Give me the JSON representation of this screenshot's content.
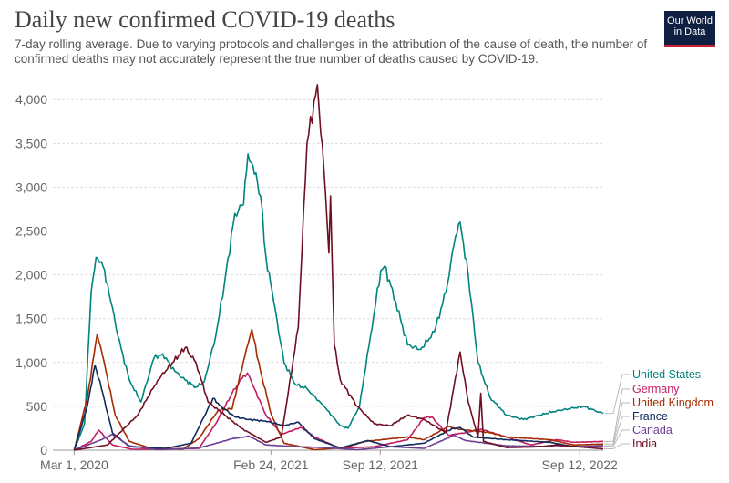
{
  "title": "Daily new confirmed COVID-19 deaths",
  "subtitle": "7-day rolling average. Due to varying protocols and challenges in the attribution of the cause of death, the number of confirmed deaths may not accurately represent the true number of deaths caused by COVID-19.",
  "logo": {
    "line1": "Our World",
    "line2": "in Data",
    "bg": "#0f1f41",
    "accent": "#c7202f"
  },
  "chart_data": {
    "type": "line",
    "title": "Daily new confirmed COVID-19 deaths",
    "ylim": [
      0,
      4200
    ],
    "yticks": [
      0,
      500,
      1000,
      1500,
      2000,
      2500,
      3000,
      3500,
      4000
    ],
    "ytick_labels": [
      "0",
      "500",
      "1,000",
      "1,500",
      "2,000",
      "2,500",
      "3,000",
      "3,500",
      "4,000"
    ],
    "xlim": [
      "2020-01-22",
      "2022-10-25"
    ],
    "xticks": [
      "2020-03-01",
      "2021-02-24",
      "2021-09-12",
      "2022-09-12"
    ],
    "xtick_labels": [
      "Mar 1, 2020",
      "Feb 24, 2021",
      "Sep 12, 2021",
      "Sep 12, 2022"
    ],
    "grid": true,
    "legend": "right",
    "series": [
      {
        "name": "United States",
        "color": "#00847e",
        "points": [
          [
            "2020-03-01",
            0
          ],
          [
            "2020-03-20",
            300
          ],
          [
            "2020-04-01",
            1800
          ],
          [
            "2020-04-10",
            2200
          ],
          [
            "2020-04-20",
            2150
          ],
          [
            "2020-05-01",
            1900
          ],
          [
            "2020-05-20",
            1300
          ],
          [
            "2020-06-10",
            800
          ],
          [
            "2020-07-01",
            550
          ],
          [
            "2020-07-25",
            1050
          ],
          [
            "2020-08-10",
            1100
          ],
          [
            "2020-09-01",
            900
          ],
          [
            "2020-09-20",
            800
          ],
          [
            "2020-10-10",
            720
          ],
          [
            "2020-10-25",
            780
          ],
          [
            "2020-11-15",
            1300
          ],
          [
            "2020-12-01",
            1900
          ],
          [
            "2020-12-20",
            2700
          ],
          [
            "2021-01-05",
            2800
          ],
          [
            "2021-01-13",
            3380
          ],
          [
            "2021-01-22",
            3250
          ],
          [
            "2021-02-05",
            2900
          ],
          [
            "2021-02-15",
            2200
          ],
          [
            "2021-03-01",
            1700
          ],
          [
            "2021-03-20",
            1000
          ],
          [
            "2021-04-10",
            750
          ],
          [
            "2021-05-01",
            700
          ],
          [
            "2021-06-01",
            500
          ],
          [
            "2021-07-01",
            280
          ],
          [
            "2021-07-15",
            250
          ],
          [
            "2021-08-05",
            500
          ],
          [
            "2021-08-25",
            1300
          ],
          [
            "2021-09-13",
            2050
          ],
          [
            "2021-09-20",
            2100
          ],
          [
            "2021-10-10",
            1700
          ],
          [
            "2021-11-01",
            1200
          ],
          [
            "2021-11-25",
            1150
          ],
          [
            "2021-12-20",
            1350
          ],
          [
            "2022-01-10",
            1800
          ],
          [
            "2022-01-25",
            2350
          ],
          [
            "2022-02-05",
            2600
          ],
          [
            "2022-02-20",
            2000
          ],
          [
            "2022-03-10",
            1000
          ],
          [
            "2022-04-01",
            600
          ],
          [
            "2022-05-01",
            400
          ],
          [
            "2022-06-01",
            350
          ],
          [
            "2022-07-01",
            400
          ],
          [
            "2022-08-01",
            450
          ],
          [
            "2022-09-01",
            480
          ],
          [
            "2022-09-20",
            500
          ],
          [
            "2022-10-10",
            450
          ],
          [
            "2022-10-25",
            420
          ]
        ]
      },
      {
        "name": "Germany",
        "color": "#c21c62",
        "points": [
          [
            "2020-03-01",
            0
          ],
          [
            "2020-04-01",
            100
          ],
          [
            "2020-04-15",
            230
          ],
          [
            "2020-05-10",
            60
          ],
          [
            "2020-06-15",
            10
          ],
          [
            "2020-10-15",
            20
          ],
          [
            "2020-11-15",
            300
          ],
          [
            "2020-12-15",
            650
          ],
          [
            "2021-01-05",
            850
          ],
          [
            "2021-01-12",
            880
          ],
          [
            "2021-01-25",
            700
          ],
          [
            "2021-02-15",
            400
          ],
          [
            "2021-03-15",
            180
          ],
          [
            "2021-04-20",
            260
          ],
          [
            "2021-05-15",
            150
          ],
          [
            "2021-07-01",
            20
          ],
          [
            "2021-09-01",
            40
          ],
          [
            "2021-11-01",
            120
          ],
          [
            "2021-12-01",
            370
          ],
          [
            "2021-12-15",
            380
          ],
          [
            "2022-01-15",
            170
          ],
          [
            "2022-02-15",
            200
          ],
          [
            "2022-03-15",
            240
          ],
          [
            "2022-05-01",
            150
          ],
          [
            "2022-06-15",
            60
          ],
          [
            "2022-08-01",
            120
          ],
          [
            "2022-09-01",
            90
          ],
          [
            "2022-10-25",
            100
          ]
        ]
      },
      {
        "name": "United Kingdom",
        "color": "#a52a00",
        "points": [
          [
            "2020-03-01",
            0
          ],
          [
            "2020-03-25",
            600
          ],
          [
            "2020-04-12",
            1320
          ],
          [
            "2020-04-25",
            1000
          ],
          [
            "2020-05-15",
            400
          ],
          [
            "2020-06-10",
            100
          ],
          [
            "2020-07-15",
            30
          ],
          [
            "2020-09-15",
            10
          ],
          [
            "2020-10-15",
            130
          ],
          [
            "2020-11-20",
            460
          ],
          [
            "2020-12-15",
            470
          ],
          [
            "2021-01-10",
            1150
          ],
          [
            "2021-01-20",
            1380
          ],
          [
            "2021-02-05",
            900
          ],
          [
            "2021-02-25",
            400
          ],
          [
            "2021-03-20",
            80
          ],
          [
            "2021-05-15",
            5
          ],
          [
            "2021-07-10",
            30
          ],
          [
            "2021-08-15",
            100
          ],
          [
            "2021-10-01",
            130
          ],
          [
            "2021-11-01",
            150
          ],
          [
            "2021-12-01",
            120
          ],
          [
            "2022-01-15",
            270
          ],
          [
            "2022-02-01",
            240
          ],
          [
            "2022-04-01",
            200
          ],
          [
            "2022-05-01",
            150
          ],
          [
            "2022-07-20",
            120
          ],
          [
            "2022-09-01",
            60
          ],
          [
            "2022-10-25",
            70
          ]
        ]
      },
      {
        "name": "France",
        "color": "#0f2c5c",
        "points": [
          [
            "2020-03-01",
            0
          ],
          [
            "2020-03-25",
            500
          ],
          [
            "2020-04-08",
            970
          ],
          [
            "2020-04-20",
            700
          ],
          [
            "2020-05-10",
            200
          ],
          [
            "2020-06-10",
            40
          ],
          [
            "2020-08-15",
            20
          ],
          [
            "2020-10-01",
            80
          ],
          [
            "2020-11-10",
            590
          ],
          [
            "2020-11-25",
            500
          ],
          [
            "2020-12-20",
            380
          ],
          [
            "2021-01-15",
            350
          ],
          [
            "2021-02-15",
            330
          ],
          [
            "2021-03-20",
            280
          ],
          [
            "2021-04-15",
            320
          ],
          [
            "2021-05-15",
            130
          ],
          [
            "2021-07-01",
            25
          ],
          [
            "2021-08-20",
            110
          ],
          [
            "2021-10-01",
            40
          ],
          [
            "2021-12-01",
            80
          ],
          [
            "2022-01-20",
            240
          ],
          [
            "2022-02-05",
            260
          ],
          [
            "2022-03-01",
            150
          ],
          [
            "2022-05-01",
            120
          ],
          [
            "2022-07-20",
            90
          ],
          [
            "2022-09-01",
            40
          ],
          [
            "2022-10-25",
            50
          ]
        ]
      },
      {
        "name": "Canada",
        "color": "#6d3e91",
        "points": [
          [
            "2020-03-01",
            0
          ],
          [
            "2020-04-20",
            120
          ],
          [
            "2020-05-10",
            180
          ],
          [
            "2020-06-10",
            50
          ],
          [
            "2020-08-01",
            5
          ],
          [
            "2020-10-15",
            25
          ],
          [
            "2020-12-15",
            130
          ],
          [
            "2021-01-15",
            160
          ],
          [
            "2021-02-15",
            60
          ],
          [
            "2021-04-15",
            40
          ],
          [
            "2021-06-01",
            30
          ],
          [
            "2021-08-01",
            5
          ],
          [
            "2021-10-01",
            40
          ],
          [
            "2021-12-01",
            20
          ],
          [
            "2022-01-25",
            170
          ],
          [
            "2022-02-15",
            110
          ],
          [
            "2022-05-01",
            50
          ],
          [
            "2022-08-01",
            40
          ],
          [
            "2022-10-25",
            45
          ]
        ]
      },
      {
        "name": "India",
        "color": "#6f0f21",
        "points": [
          [
            "2020-03-01",
            0
          ],
          [
            "2020-05-01",
            60
          ],
          [
            "2020-06-25",
            400
          ],
          [
            "2020-08-01",
            800
          ],
          [
            "2020-09-20",
            1170
          ],
          [
            "2020-10-10",
            1000
          ],
          [
            "2020-11-01",
            550
          ],
          [
            "2021-01-01",
            250
          ],
          [
            "2021-02-15",
            90
          ],
          [
            "2021-03-15",
            150
          ],
          [
            "2021-04-15",
            1400
          ],
          [
            "2021-05-01",
            3500
          ],
          [
            "2021-05-20",
            4170
          ],
          [
            "2021-06-01",
            3200
          ],
          [
            "2021-06-10",
            2250
          ],
          [
            "2021-06-13",
            2900
          ],
          [
            "2021-06-20",
            1200
          ],
          [
            "2021-07-01",
            800
          ],
          [
            "2021-08-01",
            500
          ],
          [
            "2021-09-01",
            300
          ],
          [
            "2021-10-01",
            280
          ],
          [
            "2021-11-01",
            400
          ],
          [
            "2021-12-01",
            350
          ],
          [
            "2022-01-10",
            200
          ],
          [
            "2022-02-05",
            1120
          ],
          [
            "2022-02-20",
            550
          ],
          [
            "2022-03-10",
            150
          ],
          [
            "2022-03-15",
            650
          ],
          [
            "2022-03-20",
            100
          ],
          [
            "2022-05-01",
            30
          ],
          [
            "2022-07-01",
            40
          ],
          [
            "2022-08-01",
            60
          ],
          [
            "2022-10-25",
            15
          ]
        ]
      }
    ]
  }
}
